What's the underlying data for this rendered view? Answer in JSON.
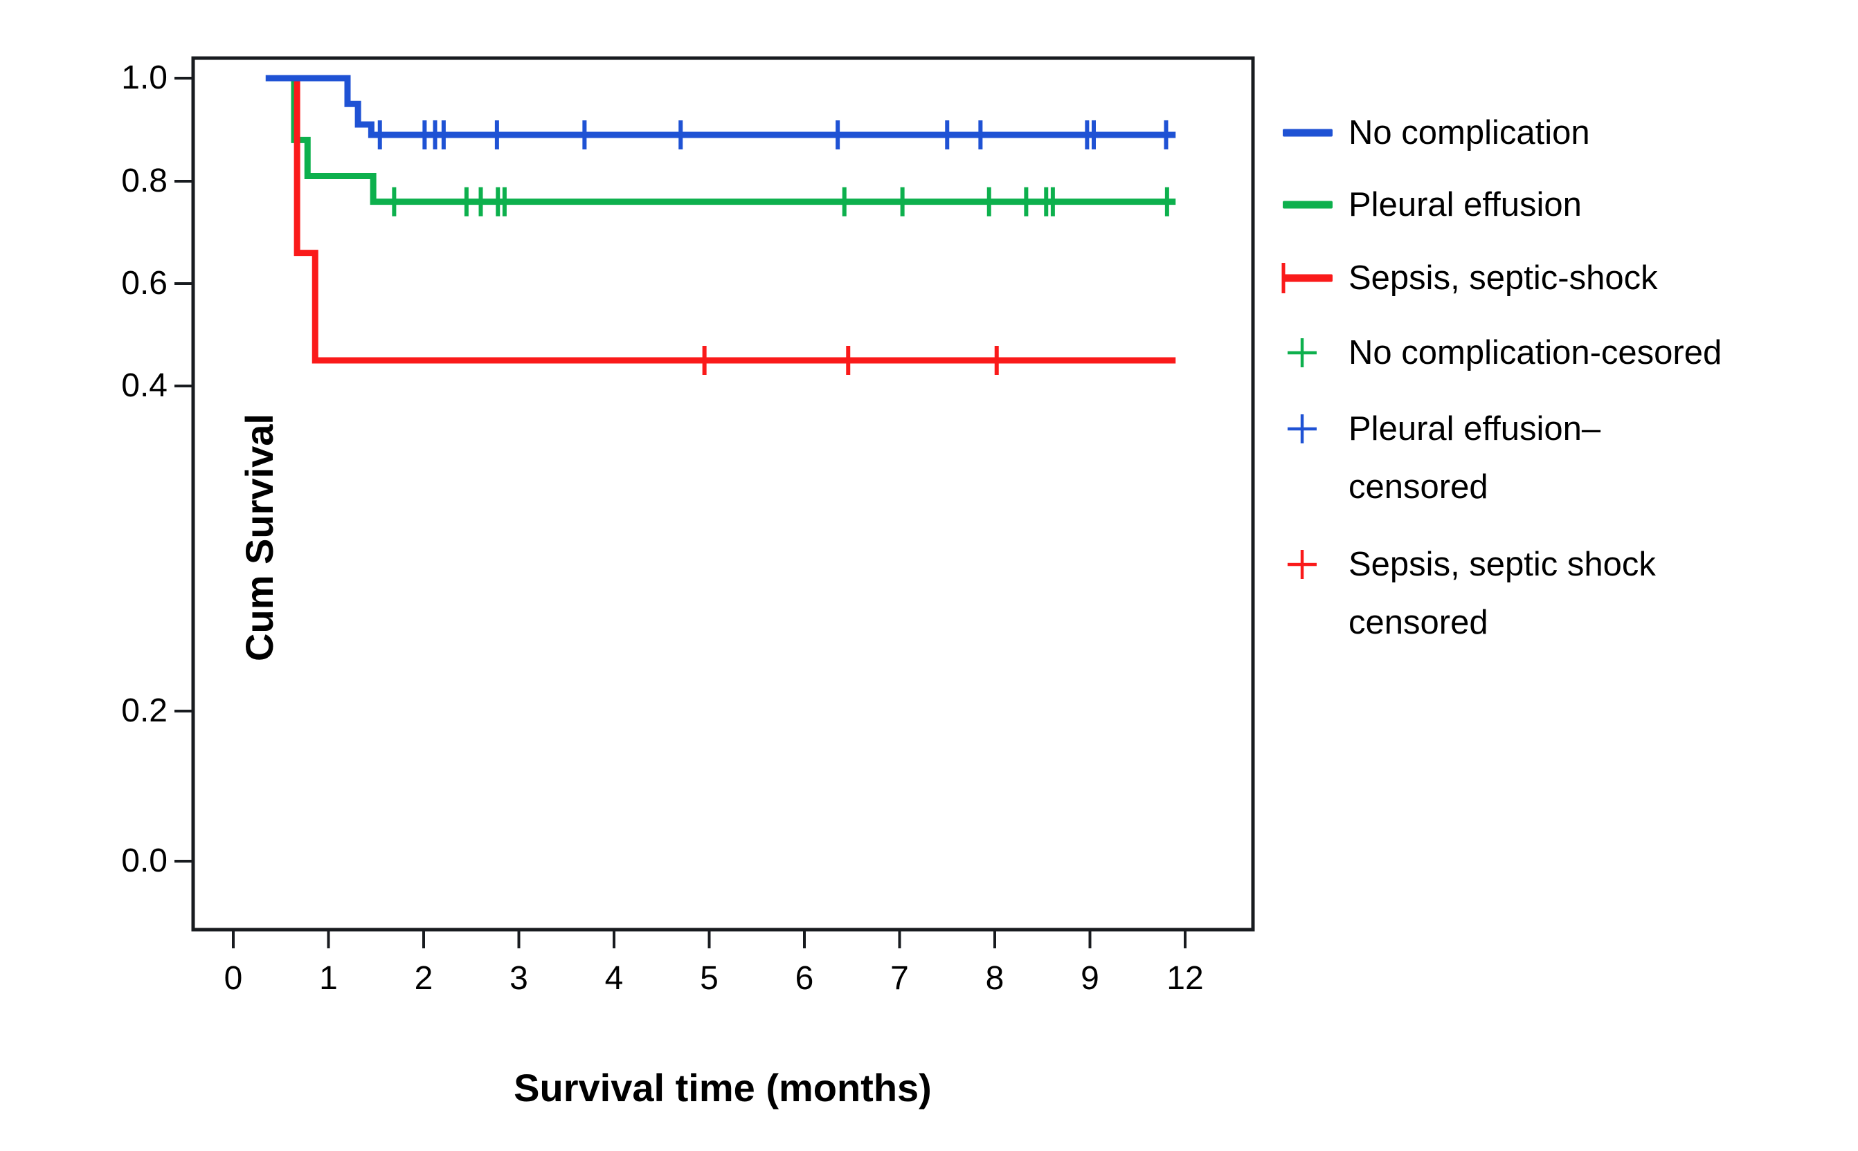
{
  "figure": {
    "background_color": "#ffffff",
    "frame_color": "#181b1f",
    "text_color": "#000000"
  },
  "chart_data": {
    "type": "line",
    "subtype": "kaplan-meier-step-curves",
    "title": "",
    "xlabel": "Survival time (months)",
    "ylabel": "Cum Survival",
    "x_tick_labels": [
      "0",
      "1",
      "2",
      "3",
      "4",
      "5",
      "6",
      "7",
      "8",
      "9",
      "12"
    ],
    "x_tick_positions": [
      0,
      1,
      2,
      3,
      4,
      5,
      6,
      7,
      8,
      9,
      10
    ],
    "x_axis_note": "11 evenly spaced ticks; labels run 0-9 then jump to 12; series x values are in tick-position units",
    "y_tick_labels": [
      "0.0",
      "0.2",
      "0.4",
      "0.6",
      "0.8",
      "1.0"
    ],
    "y_tick_values": [
      0.0,
      0.2,
      0.4,
      0.6,
      0.8,
      1.0
    ],
    "grid": false,
    "legend_position": "right",
    "series": [
      {
        "name": "No complication",
        "color": "#1f52d4",
        "start": {
          "x": 0.34,
          "y": 1.0
        },
        "drops": [
          {
            "x": 1.2,
            "to": 0.95
          },
          {
            "x": 1.31,
            "to": 0.91
          },
          {
            "x": 1.45,
            "to": 0.89
          }
        ],
        "end_x": 9.9,
        "final_value": 0.89,
        "censored": {
          "y": 0.89,
          "x": [
            1.54,
            2.01,
            2.12,
            2.21,
            2.77,
            3.69,
            4.7,
            6.35,
            7.5,
            7.85,
            8.97,
            9.04,
            9.8
          ]
        }
      },
      {
        "name": "Pleural effusion",
        "color": "#0db04d",
        "start": {
          "x": 0.6,
          "y": 1.0
        },
        "drops": [
          {
            "x": 0.64,
            "to": 0.88
          },
          {
            "x": 0.78,
            "to": 0.81
          },
          {
            "x": 1.47,
            "to": 0.76
          }
        ],
        "end_x": 9.9,
        "final_value": 0.76,
        "censored": {
          "y": 0.76,
          "x": [
            1.69,
            2.45,
            2.6,
            2.78,
            2.85,
            6.42,
            7.03,
            7.94,
            8.33,
            8.54,
            8.61,
            9.81
          ]
        }
      },
      {
        "name": "Sepsis, septic-shock",
        "color": "#fa1a1a",
        "start": {
          "x": 0.63,
          "y": 1.0
        },
        "drops": [
          {
            "x": 0.67,
            "to": 0.66
          },
          {
            "x": 0.86,
            "to": 0.45
          }
        ],
        "end_x": 9.9,
        "final_value": 0.45,
        "censored": {
          "y": 0.45,
          "x": [
            4.95,
            6.46,
            8.02
          ]
        }
      }
    ],
    "legend": [
      {
        "lines": [
          "No complication"
        ],
        "marker": "line",
        "color": "#1f52d4"
      },
      {
        "lines": [
          "Pleural effusion"
        ],
        "marker": "line",
        "color": "#0db04d"
      },
      {
        "lines": [
          "Sepsis, septic-shock"
        ],
        "marker": "line-plus",
        "color": "#fa1a1a"
      },
      {
        "lines": [
          "No complication-cesored"
        ],
        "marker": "plus",
        "color": "#0db04d"
      },
      {
        "lines": [
          "Pleural effusion–",
          "censored"
        ],
        "marker": "plus",
        "color": "#1f52d4"
      },
      {
        "lines": [
          "Sepsis, septic shock",
          "censored"
        ],
        "marker": "plus",
        "color": "#fa1a1a"
      }
    ]
  }
}
